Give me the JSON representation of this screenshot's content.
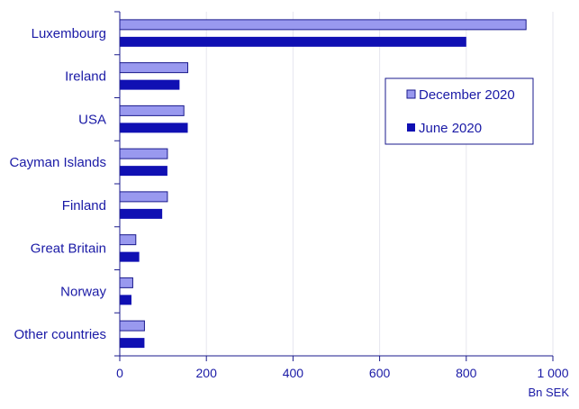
{
  "chart_data": {
    "type": "bar",
    "orientation": "horizontal",
    "title": "",
    "xlabel": "Bn SEK",
    "ylabel": "",
    "xlim": [
      0,
      1000
    ],
    "x_ticks": [
      0,
      200,
      400,
      600,
      800,
      1000
    ],
    "x_tick_labels": [
      "0",
      "200",
      "400",
      "600",
      "800",
      "1 000"
    ],
    "grid": "vertical",
    "legend_position": "right",
    "categories": [
      "Luxembourg",
      "Ireland",
      "USA",
      "Cayman Islands",
      "Finland",
      "Great Britain",
      "Norway",
      "Other countries"
    ],
    "series": [
      {
        "name": "December 2020",
        "color": "#9999ef",
        "values": [
          938,
          157,
          148,
          110,
          110,
          37,
          30,
          57
        ]
      },
      {
        "name": "June 2020",
        "color": "#1010b3",
        "values": [
          800,
          138,
          157,
          110,
          98,
          45,
          27,
          57
        ]
      }
    ],
    "colors": {
      "text": "#1a1aa6",
      "axis": "#1a1a8c",
      "grid": "#e6e6ee",
      "bar_outline": "#1a1a8c"
    }
  }
}
